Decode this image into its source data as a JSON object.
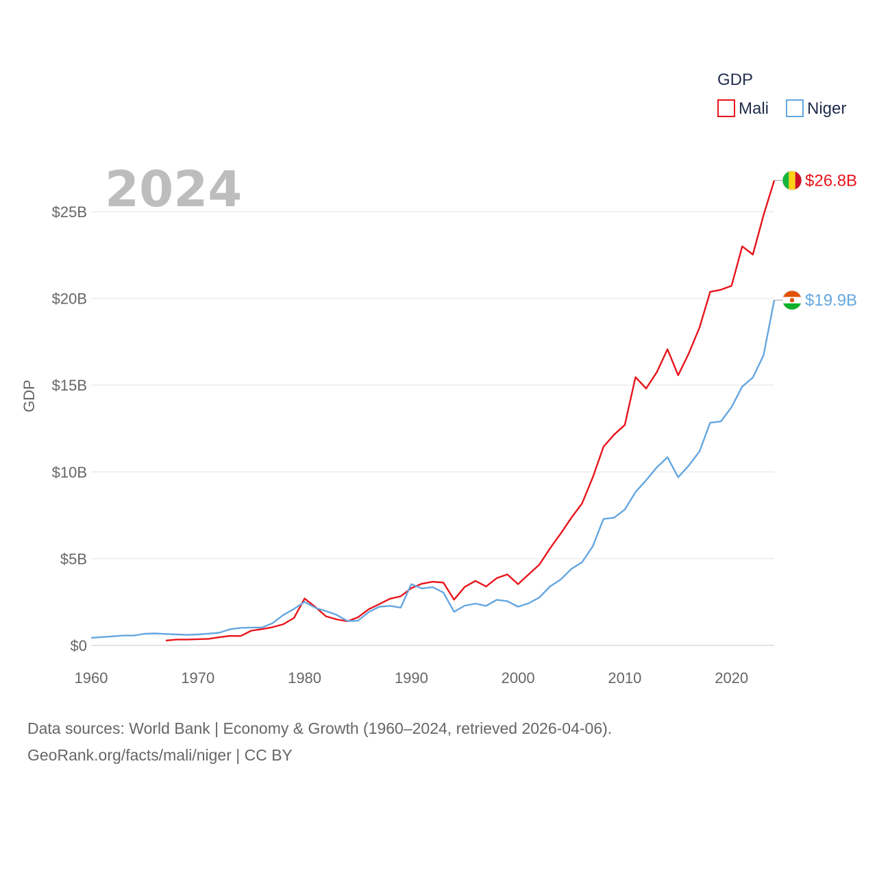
{
  "chart_data": {
    "type": "line",
    "year_label": "2024",
    "ylabel": "GDP",
    "xlim": [
      1960,
      2024
    ],
    "ylim": [
      0,
      28000000000
    ],
    "y_ticks": [
      {
        "value": 0,
        "label": "$0"
      },
      {
        "value": 5000000000,
        "label": "$5B"
      },
      {
        "value": 10000000000,
        "label": "$10B"
      },
      {
        "value": 15000000000,
        "label": "$15B"
      },
      {
        "value": 20000000000,
        "label": "$20B"
      },
      {
        "value": 25000000000,
        "label": "$25B"
      }
    ],
    "x_ticks": [
      {
        "value": 1960,
        "label": "1960"
      },
      {
        "value": 1970,
        "label": "1970"
      },
      {
        "value": 1980,
        "label": "1980"
      },
      {
        "value": 1990,
        "label": "1990"
      },
      {
        "value": 2000,
        "label": "2000"
      },
      {
        "value": 2010,
        "label": "2010"
      },
      {
        "value": 2020,
        "label": "2020"
      }
    ],
    "legend": {
      "title": "GDP",
      "position": "top-right"
    },
    "series": [
      {
        "name": "Mali",
        "color": "#e8141b",
        "end_label": "$26.8B",
        "flag": "mali-flag",
        "x": [
          1967,
          1968,
          1969,
          1970,
          1971,
          1972,
          1973,
          1974,
          1975,
          1976,
          1977,
          1978,
          1979,
          1980,
          1981,
          1982,
          1983,
          1984,
          1985,
          1986,
          1987,
          1988,
          1989,
          1990,
          1991,
          1992,
          1993,
          1994,
          1995,
          1996,
          1997,
          1998,
          1999,
          2000,
          2001,
          2002,
          2003,
          2004,
          2005,
          2006,
          2007,
          2008,
          2009,
          2010,
          2011,
          2012,
          2013,
          2014,
          2015,
          2016,
          2017,
          2018,
          2019,
          2020,
          2021,
          2022,
          2023,
          2024
        ],
        "y": [
          0.28,
          0.34,
          0.34,
          0.36,
          0.38,
          0.47,
          0.55,
          0.54,
          0.85,
          0.94,
          1.05,
          1.22,
          1.58,
          2.7,
          2.22,
          1.68,
          1.5,
          1.39,
          1.62,
          2.08,
          2.38,
          2.69,
          2.83,
          3.3,
          3.56,
          3.67,
          3.62,
          2.64,
          3.37,
          3.72,
          3.4,
          3.88,
          4.09,
          3.53,
          4.1,
          4.66,
          5.6,
          6.45,
          7.36,
          8.19,
          9.69,
          11.45,
          12.15,
          12.71,
          15.46,
          14.81,
          15.75,
          17.07,
          15.57,
          16.84,
          18.33,
          20.38,
          20.5,
          20.73,
          23.0,
          22.53,
          24.8,
          26.8
        ]
      },
      {
        "name": "Niger",
        "color": "#64a6e0",
        "end_label": "$19.9B",
        "flag": "niger-flag",
        "x": [
          1960,
          1961,
          1962,
          1963,
          1964,
          1965,
          1966,
          1967,
          1968,
          1969,
          1970,
          1971,
          1972,
          1973,
          1974,
          1975,
          1976,
          1977,
          1978,
          1979,
          1980,
          1981,
          1982,
          1983,
          1984,
          1985,
          1986,
          1987,
          1988,
          1989,
          1990,
          1991,
          1992,
          1993,
          1994,
          1995,
          1996,
          1997,
          1998,
          1999,
          2000,
          2001,
          2002,
          2003,
          2004,
          2005,
          2006,
          2007,
          2008,
          2009,
          2010,
          2011,
          2012,
          2013,
          2014,
          2015,
          2016,
          2017,
          2018,
          2019,
          2020,
          2021,
          2022,
          2023,
          2024
        ],
        "y": [
          0.44,
          0.48,
          0.52,
          0.57,
          0.57,
          0.67,
          0.69,
          0.66,
          0.63,
          0.61,
          0.63,
          0.68,
          0.73,
          0.93,
          1.01,
          1.03,
          1.03,
          1.28,
          1.75,
          2.1,
          2.51,
          2.17,
          1.98,
          1.76,
          1.41,
          1.42,
          1.92,
          2.23,
          2.28,
          2.18,
          3.53,
          3.28,
          3.36,
          3.05,
          1.94,
          2.29,
          2.41,
          2.28,
          2.63,
          2.55,
          2.23,
          2.43,
          2.77,
          3.4,
          3.8,
          4.41,
          4.8,
          5.72,
          7.29,
          7.36,
          7.83,
          8.84,
          9.52,
          10.26,
          10.85,
          9.69,
          10.37,
          11.19,
          12.84,
          12.91,
          13.74,
          14.92,
          15.44,
          16.72,
          19.9
        ]
      }
    ]
  },
  "source": {
    "line1": "Data sources: World Bank | Economy & Growth (1960–2024, retrieved 2026-04-06).",
    "line2": "GeoRank.org/facts/mali/niger | CC BY"
  }
}
